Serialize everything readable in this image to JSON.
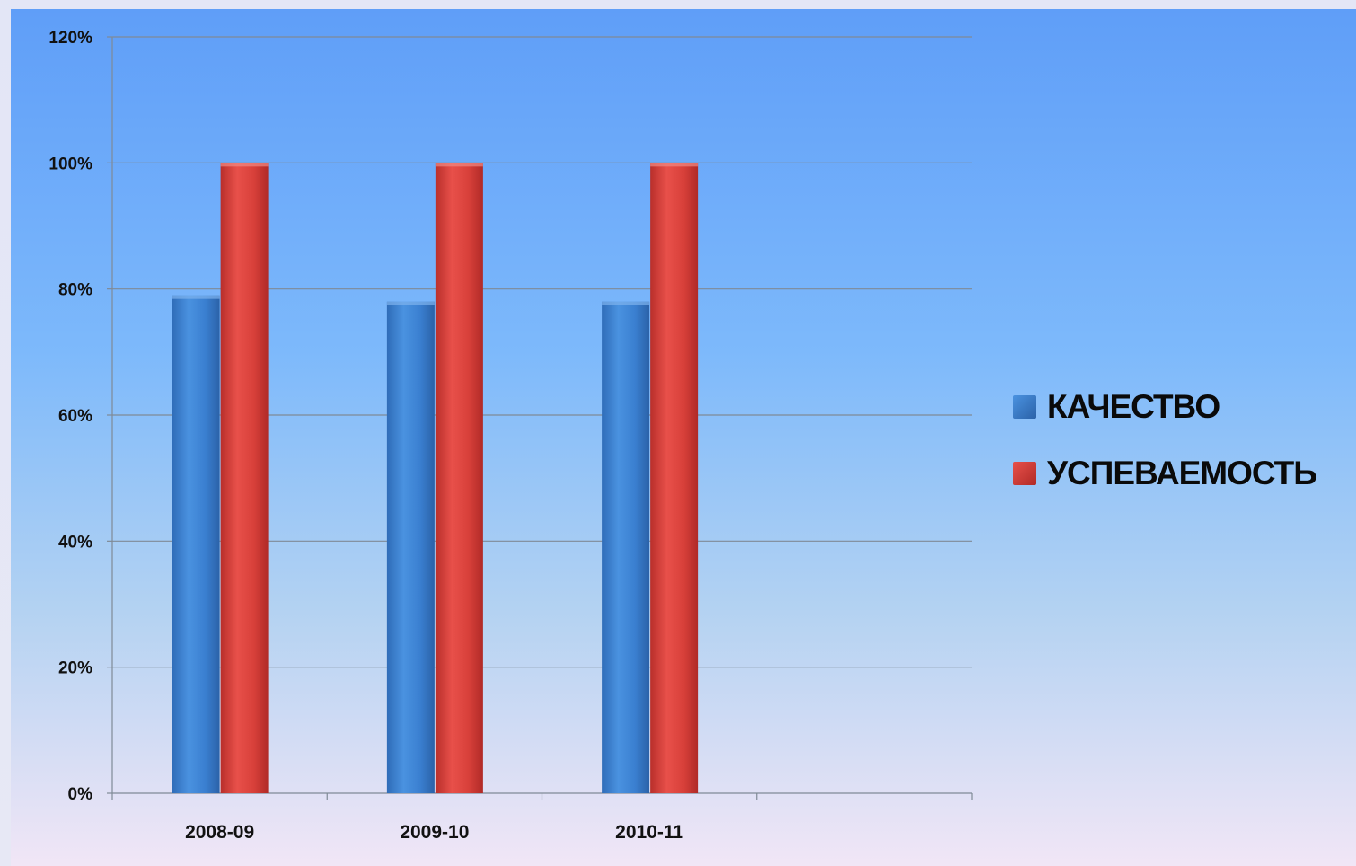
{
  "chart_data": {
    "type": "bar",
    "categories": [
      "2008-09",
      "2009-10",
      "2010-11",
      ""
    ],
    "series": [
      {
        "name": "КАЧЕСТВО",
        "values": [
          79,
          78,
          78,
          null
        ],
        "color": "#3a7fd0"
      },
      {
        "name": "УСПЕВАЕМОСТЬ",
        "values": [
          100,
          100,
          100,
          null
        ],
        "color": "#d8403a"
      }
    ],
    "ylim": [
      0,
      120
    ],
    "yticks": [
      "0%",
      "20%",
      "40%",
      "60%",
      "80%",
      "100%",
      "120%"
    ],
    "ytick_values": [
      0,
      20,
      40,
      60,
      80,
      100,
      120
    ],
    "grid": true,
    "legend_position": "right",
    "title": "",
    "xlabel": "",
    "ylabel": ""
  }
}
